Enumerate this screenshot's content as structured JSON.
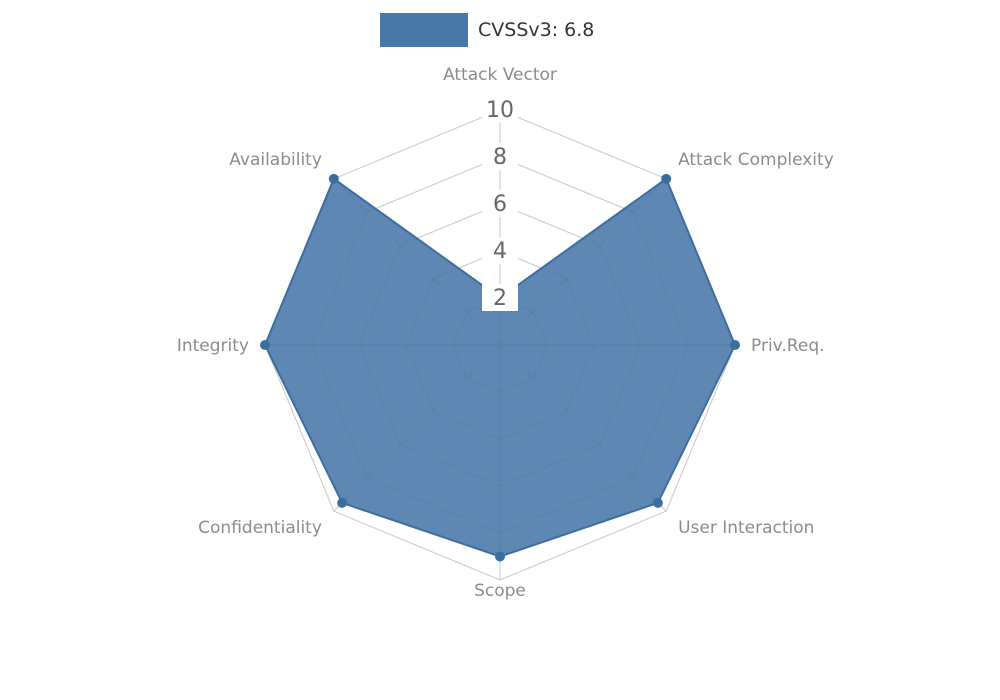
{
  "page": {
    "background": "#ffffff"
  },
  "chart_data": {
    "type": "radar",
    "title": "CVSSv3: 6.8",
    "categories": [
      "Attack Vector",
      "Attack Complexity",
      "Priv.Req.",
      "User Interaction",
      "Scope",
      "Confidentiality",
      "Integrity",
      "Availability"
    ],
    "series": [
      {
        "name": "CVSSv3: 6.8",
        "values": [
          2,
          10,
          10,
          9.5,
          9,
          9.5,
          10,
          10
        ]
      }
    ],
    "ticks": [
      2,
      4,
      6,
      8,
      10
    ],
    "rlim": [
      0,
      10
    ],
    "grid": true,
    "legend_position": "top-center",
    "colors": {
      "fill": "#4878a8",
      "edge": "#3a6e9f",
      "grid": "#999999",
      "axis_label": "#8c8c8c",
      "tick_label": "#666666",
      "legend_text": "#333333",
      "tick_bg": "#ffffff"
    }
  }
}
